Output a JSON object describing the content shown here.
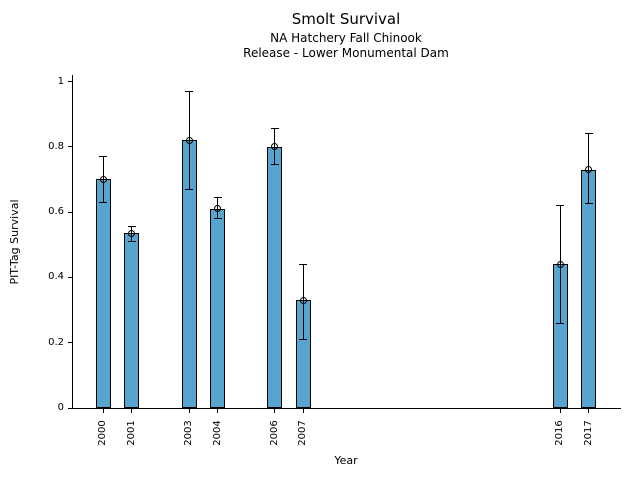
{
  "chart": {
    "title": "Smolt Survival",
    "subtitle1": "NA Hatchery Fall Chinook",
    "subtitle2": "Release - Lower Monumental Dam",
    "xlabel": "Year",
    "ylabel": "PIT-Tag Survival"
  },
  "chart_data": {
    "type": "bar",
    "title": "Smolt Survival",
    "subtitle1": "NA Hatchery Fall Chinook",
    "subtitle2": "Release - Lower Monumental Dam",
    "xlabel": "Year",
    "ylabel": "PIT-Tag Survival",
    "categories": [
      2000,
      2001,
      2003,
      2004,
      2006,
      2007,
      2016,
      2017
    ],
    "values": [
      0.7,
      0.535,
      0.82,
      0.61,
      0.8,
      0.33,
      0.44,
      0.73
    ],
    "error_low": [
      0.63,
      0.51,
      0.67,
      0.58,
      0.745,
      0.21,
      0.26,
      0.625
    ],
    "error_high": [
      0.77,
      0.555,
      0.97,
      0.645,
      0.855,
      0.44,
      0.62,
      0.84
    ],
    "marker": "open-circle",
    "error_bars": true,
    "grid": false,
    "legend_position": "none",
    "ylim": [
      0,
      1.02
    ],
    "xlim": [
      1998.9,
      2018.1
    ],
    "yticks": [
      0,
      0.2,
      0.4,
      0.6,
      0.8,
      1
    ],
    "ytick_labels": [
      "0",
      "0.2",
      "0.4",
      "0.6",
      "0.8",
      "1"
    ],
    "bar_color": "#57a4cf",
    "bar_edge_color": "#000000",
    "axis_color": "#000000"
  }
}
